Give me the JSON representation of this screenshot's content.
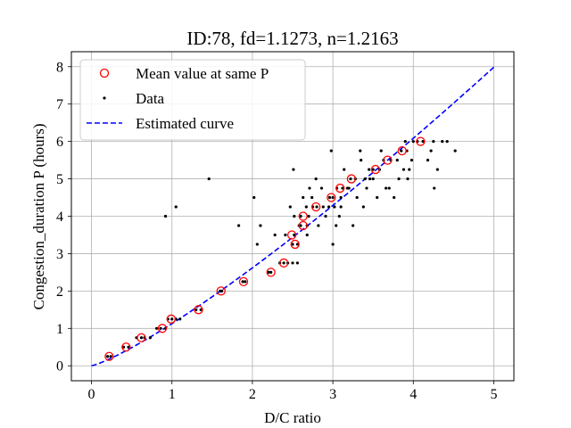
{
  "chart_data": {
    "type": "scatter",
    "title": "ID:78, fd=1.1273, n=1.2163",
    "xlabel": "D/C ratio",
    "ylabel": "Congestion_duration P (hours)",
    "xlim": [
      -0.25,
      5.25
    ],
    "ylim": [
      -0.4,
      8.4
    ],
    "xticks": [
      0,
      1,
      2,
      3,
      4,
      5
    ],
    "yticks": [
      0,
      1,
      2,
      3,
      4,
      5,
      6,
      7,
      8
    ],
    "grid": true,
    "legend_position": "upper-left",
    "legend": [
      "Mean value at same P",
      "Data",
      "Estimated curve"
    ],
    "series": [
      {
        "name": "Mean value at same P",
        "kind": "hollow-circle",
        "color": "#ff0000",
        "points": [
          [
            0.22,
            0.25
          ],
          [
            0.43,
            0.5
          ],
          [
            0.62,
            0.75
          ],
          [
            0.88,
            1.0
          ],
          [
            0.99,
            1.25
          ],
          [
            1.33,
            1.5
          ],
          [
            1.61,
            2.0
          ],
          [
            1.89,
            2.25
          ],
          [
            2.23,
            2.5
          ],
          [
            2.39,
            2.75
          ],
          [
            2.53,
            3.25
          ],
          [
            2.49,
            3.5
          ],
          [
            2.63,
            3.75
          ],
          [
            2.63,
            4.0
          ],
          [
            2.79,
            4.25
          ],
          [
            2.98,
            4.5
          ],
          [
            3.09,
            4.75
          ],
          [
            3.23,
            5.0
          ],
          [
            3.53,
            5.25
          ],
          [
            3.68,
            5.5
          ],
          [
            3.86,
            5.75
          ],
          [
            4.09,
            6.0
          ]
        ]
      },
      {
        "name": "Data",
        "kind": "dot",
        "color": "#000000",
        "points": [
          [
            0.2,
            0.25
          ],
          [
            0.24,
            0.25
          ],
          [
            0.4,
            0.5
          ],
          [
            0.46,
            0.5
          ],
          [
            0.56,
            0.75
          ],
          [
            0.62,
            0.75
          ],
          [
            0.66,
            0.75
          ],
          [
            0.73,
            0.75
          ],
          [
            0.81,
            1.0
          ],
          [
            0.86,
            1.0
          ],
          [
            0.92,
            1.0
          ],
          [
            0.95,
            1.25
          ],
          [
            1.0,
            1.25
          ],
          [
            1.05,
            1.25
          ],
          [
            1.1,
            1.25
          ],
          [
            1.3,
            1.5
          ],
          [
            1.36,
            1.5
          ],
          [
            1.6,
            2.0
          ],
          [
            1.62,
            2.0
          ],
          [
            1.88,
            2.25
          ],
          [
            1.91,
            2.25
          ],
          [
            2.2,
            2.5
          ],
          [
            2.23,
            2.5
          ],
          [
            2.34,
            2.75
          ],
          [
            2.39,
            2.75
          ],
          [
            2.44,
            2.75
          ],
          [
            2.5,
            2.75
          ],
          [
            2.5,
            3.25
          ],
          [
            2.56,
            3.25
          ],
          [
            2.52,
            3.5
          ],
          [
            2.68,
            3.5
          ],
          [
            2.6,
            3.75
          ],
          [
            2.68,
            3.75
          ],
          [
            2.6,
            4.0
          ],
          [
            2.7,
            4.0
          ],
          [
            2.8,
            4.25
          ],
          [
            2.75,
            4.25
          ],
          [
            2.88,
            4.25
          ],
          [
            2.95,
            4.25
          ],
          [
            3.02,
            4.25
          ],
          [
            3.1,
            4.25
          ],
          [
            2.96,
            4.5
          ],
          [
            3.0,
            4.5
          ],
          [
            3.1,
            4.5
          ],
          [
            3.05,
            4.75
          ],
          [
            3.12,
            4.75
          ],
          [
            3.2,
            4.75
          ],
          [
            3.22,
            5.0
          ],
          [
            3.28,
            5.0
          ],
          [
            3.4,
            5.0
          ],
          [
            3.5,
            5.25
          ],
          [
            3.58,
            5.25
          ],
          [
            3.45,
            5.25
          ],
          [
            3.63,
            5.5
          ],
          [
            3.72,
            5.5
          ],
          [
            3.8,
            5.5
          ],
          [
            3.85,
            5.75
          ],
          [
            3.92,
            5.75
          ],
          [
            4.05,
            6.0
          ],
          [
            4.12,
            6.0
          ],
          [
            0.92,
            4.0
          ],
          [
            1.05,
            4.25
          ],
          [
            1.46,
            5.0
          ],
          [
            1.83,
            3.75
          ],
          [
            2.02,
            4.5
          ],
          [
            2.06,
            3.25
          ],
          [
            2.1,
            3.75
          ],
          [
            2.28,
            3.5
          ],
          [
            2.41,
            3.5
          ],
          [
            2.47,
            4.25
          ],
          [
            2.51,
            5.25
          ],
          [
            2.52,
            4.0
          ],
          [
            2.56,
            2.75
          ],
          [
            2.58,
            3.75
          ],
          [
            2.63,
            4.5
          ],
          [
            2.67,
            4.25
          ],
          [
            2.71,
            4.75
          ],
          [
            2.74,
            4.5
          ],
          [
            2.79,
            5.0
          ],
          [
            2.86,
            4.75
          ],
          [
            2.82,
            3.75
          ],
          [
            2.91,
            4.0
          ],
          [
            2.98,
            5.75
          ],
          [
            3.0,
            3.25
          ],
          [
            3.04,
            3.75
          ],
          [
            3.08,
            4.0
          ],
          [
            3.14,
            5.25
          ],
          [
            3.18,
            4.75
          ],
          [
            3.25,
            3.75
          ],
          [
            3.3,
            4.5
          ],
          [
            3.35,
            5.5
          ],
          [
            3.38,
            4.25
          ],
          [
            3.42,
            4.75
          ],
          [
            3.46,
            5.0
          ],
          [
            3.55,
            4.5
          ],
          [
            3.6,
            5.75
          ],
          [
            3.66,
            4.75
          ],
          [
            3.76,
            4.5
          ],
          [
            3.88,
            5.25
          ],
          [
            3.93,
            5.0
          ],
          [
            3.98,
            5.5
          ],
          [
            4.0,
            6.0
          ],
          [
            4.18,
            5.5
          ],
          [
            4.22,
            5.75
          ],
          [
            4.26,
            4.75
          ],
          [
            4.3,
            5.25
          ],
          [
            4.36,
            6.0
          ],
          [
            4.42,
            6.0
          ],
          [
            4.52,
            5.75
          ],
          [
            4.25,
            6.0
          ],
          [
            3.9,
            6.0
          ],
          [
            3.34,
            5.75
          ],
          [
            3.5,
            5.0
          ],
          [
            3.7,
            4.75
          ],
          [
            3.82,
            5.0
          ],
          [
            3.95,
            5.25
          ]
        ]
      },
      {
        "name": "Estimated curve",
        "kind": "dashed-line",
        "color": "#0000ff",
        "fd": 1.1273,
        "n": 1.2163
      }
    ]
  }
}
